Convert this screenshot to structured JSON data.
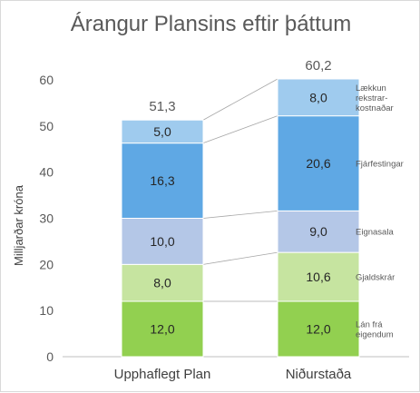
{
  "chart_data": {
    "type": "bar",
    "stacked": true,
    "title": "Árangur Plansins eftir þáttum",
    "ylabel": "Milljarðar króna",
    "ylim": [
      0,
      60
    ],
    "yticks": [
      0,
      10,
      20,
      30,
      40,
      50,
      60
    ],
    "categories": [
      "Upphaflegt Plan",
      "Niðurstaða"
    ],
    "totals": [
      "51,3",
      "60,2"
    ],
    "series": [
      {
        "name": "Lán frá eigendum",
        "values": [
          12.0,
          12.0
        ],
        "labels": [
          "12,0",
          "12,0"
        ],
        "color": "#92d050"
      },
      {
        "name": "Gjaldskrár",
        "values": [
          8.0,
          10.6
        ],
        "labels": [
          "8,0",
          "10,6"
        ],
        "color": "#c6e4a0"
      },
      {
        "name": "Eignasala",
        "values": [
          10.0,
          9.0
        ],
        "labels": [
          "10,0",
          "9,0"
        ],
        "color": "#b4c7e7"
      },
      {
        "name": "Fjárfestingar",
        "values": [
          16.3,
          20.6
        ],
        "labels": [
          "16,3",
          "20,6"
        ],
        "color": "#5fa8e4"
      },
      {
        "name": "Lækkun rekstrar-kostnaðar",
        "values": [
          5.0,
          8.0
        ],
        "labels": [
          "5,0",
          "8,0"
        ],
        "color": "#9fcbee"
      }
    ],
    "side_labels": [
      {
        "lines": [
          "Lán frá",
          "eigendum"
        ]
      },
      {
        "lines": [
          "Gjaldskrár"
        ]
      },
      {
        "lines": [
          "Eignasala"
        ]
      },
      {
        "lines": [
          "Fjárfestingar"
        ]
      },
      {
        "lines": [
          "Lækkun",
          "rekstrar-",
          "kostnaðar"
        ]
      }
    ],
    "grid": false,
    "legend": "right"
  }
}
